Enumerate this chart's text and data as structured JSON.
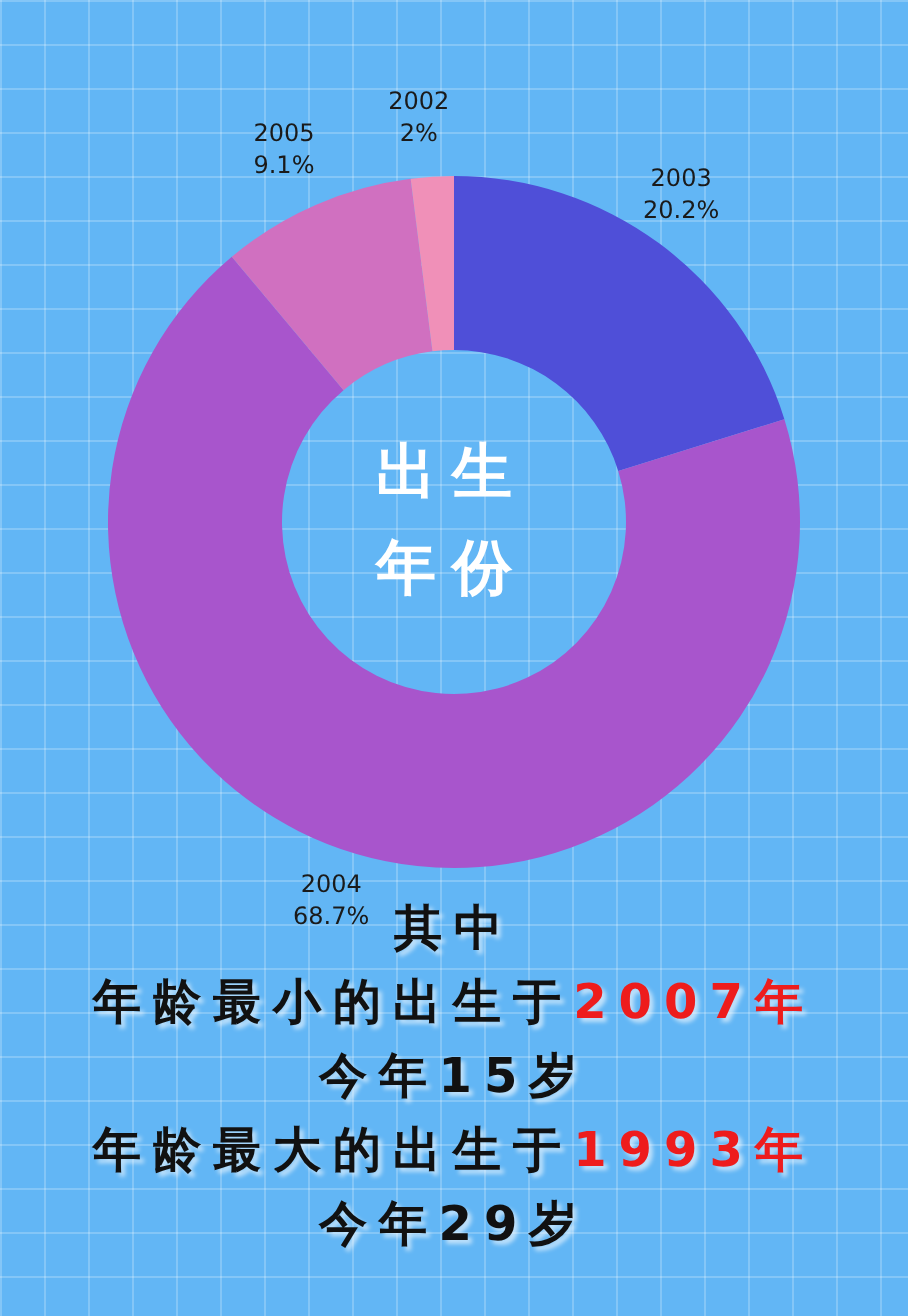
{
  "chart_data": {
    "type": "donut",
    "title": "出生年份",
    "categories": [
      "2003",
      "2004",
      "2005",
      "2002"
    ],
    "values": [
      20.2,
      68.7,
      9.1,
      2
    ],
    "colors": [
      "#4f4fd8",
      "#a855cc",
      "#d070c0",
      "#f090b8"
    ],
    "value_labels": [
      "20.2%",
      "68.7%",
      "9.1%",
      "2%"
    ],
    "annotations": [
      "其中",
      "年龄最小的出生于2007年",
      "今年15岁",
      "年龄最大的出生于1993年",
      "今年29岁"
    ]
  }
}
